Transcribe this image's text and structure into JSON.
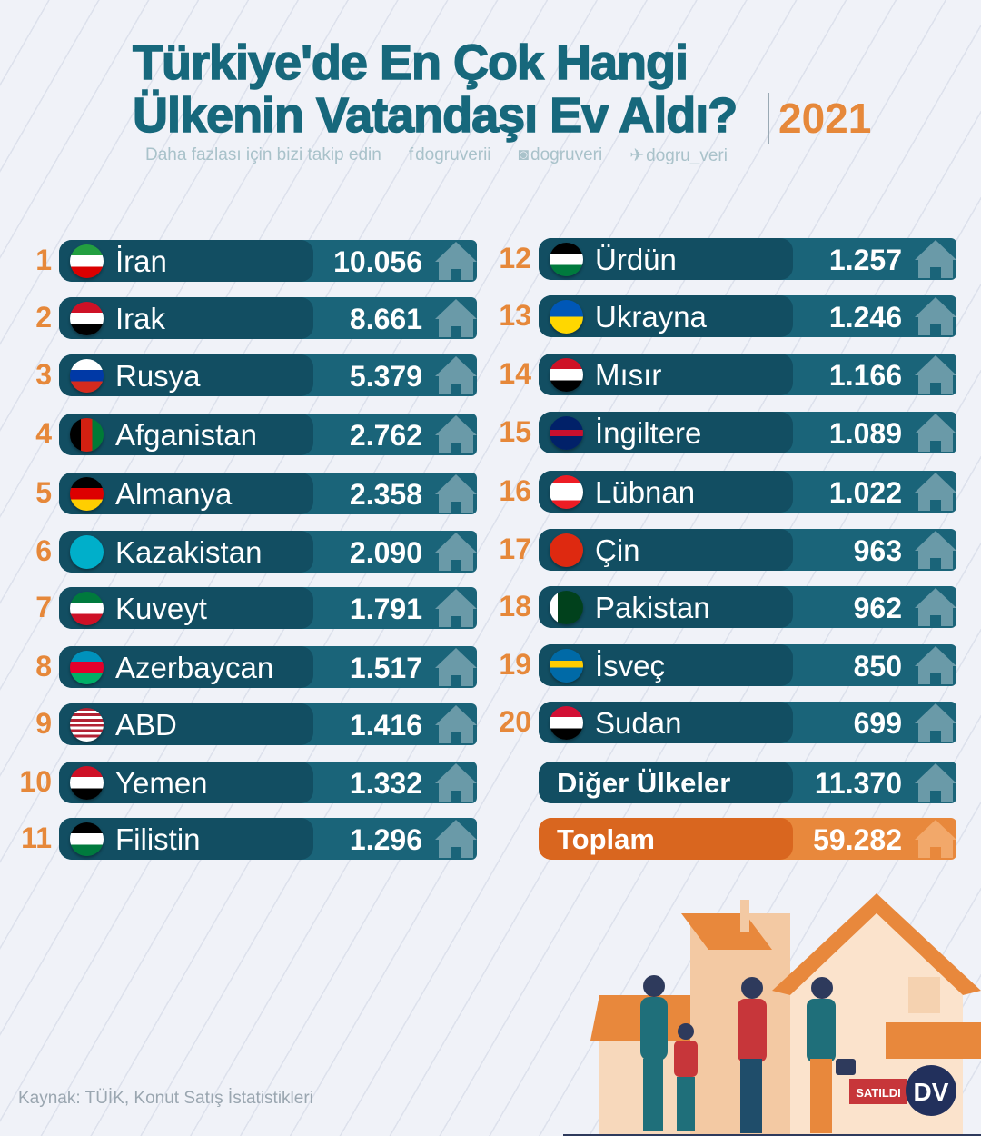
{
  "header": {
    "title_line1": "Türkiye'de En Çok Hangi",
    "title_line2": "Ülkenin Vatandaşı Ev Aldı?",
    "year": "2021",
    "follow": "Daha fazlası için bizi takip edin",
    "facebook": "dogruverii",
    "instagram": "dogruveri",
    "twitter": "dogru_veri"
  },
  "rows": [
    {
      "rank": "1",
      "name": "İran",
      "value": "10.056",
      "flag": [
        "#239f40 0 33%",
        "#fff 33% 66%",
        "#da0000 66%"
      ]
    },
    {
      "rank": "2",
      "name": "Irak",
      "value": "8.661",
      "flag": [
        "#ce1126 0 33%",
        "#fff 33% 66%",
        "#000 66%"
      ]
    },
    {
      "rank": "3",
      "name": "Rusya",
      "value": "5.379",
      "flag": [
        "#fff 0 33%",
        "#0039a6 33% 66%",
        "#d52b1e 66%"
      ]
    },
    {
      "rank": "4",
      "name": "Afganistan",
      "value": "2.762",
      "flag": [
        "#000 0 33%",
        "#d32011 33% 66%",
        "#007a36 66%"
      ],
      "vertical": true
    },
    {
      "rank": "5",
      "name": "Almanya",
      "value": "2.358",
      "flag": [
        "#000 0 33%",
        "#dd0000 33% 66%",
        "#ffce00 66%"
      ]
    },
    {
      "rank": "6",
      "name": "Kazakistan",
      "value": "2.090",
      "flag": [
        "#00afca 0 100%"
      ]
    },
    {
      "rank": "7",
      "name": "Kuveyt",
      "value": "1.791",
      "flag": [
        "#007a3d 0 33%",
        "#fff 33% 66%",
        "#ce1126 66%"
      ]
    },
    {
      "rank": "8",
      "name": "Azerbaycan",
      "value": "1.517",
      "flag": [
        "#0092bc 0 33%",
        "#e4002b 33% 66%",
        "#00af66 66%"
      ]
    },
    {
      "rank": "9",
      "name": "ABD",
      "value": "1.416",
      "flag": [
        "#b22234 0 8%",
        "#fff 8% 16%",
        "#b22234 16% 24%",
        "#fff 24% 32%",
        "#b22234 32% 40%",
        "#fff 40% 48%",
        "#b22234 48% 56%",
        "#fff 56% 64%",
        "#b22234 64% 72%",
        "#fff 72% 80%",
        "#b22234 80% 88%",
        "#fff 88%"
      ]
    },
    {
      "rank": "10",
      "name": "Yemen",
      "value": "1.332",
      "flag": [
        "#ce1126 0 33%",
        "#fff 33% 66%",
        "#000 66%"
      ]
    },
    {
      "rank": "11",
      "name": "Filistin",
      "value": "1.296",
      "flag": [
        "#000 0 33%",
        "#fff 33% 66%",
        "#007a3d 66%"
      ]
    },
    {
      "rank": "12",
      "name": "Ürdün",
      "value": "1.257",
      "flag": [
        "#000 0 33%",
        "#fff 33% 66%",
        "#007a3d 66%"
      ]
    },
    {
      "rank": "13",
      "name": "Ukrayna",
      "value": "1.246",
      "flag": [
        "#0057b7 0 50%",
        "#ffd700 50%"
      ]
    },
    {
      "rank": "14",
      "name": "Mısır",
      "value": "1.166",
      "flag": [
        "#ce1126 0 33%",
        "#fff 33% 66%",
        "#000 66%"
      ]
    },
    {
      "rank": "15",
      "name": "İngiltere",
      "value": "1.089",
      "flag": [
        "#012169 0 40%",
        "#c8102e 40% 60%",
        "#012169 60%"
      ]
    },
    {
      "rank": "16",
      "name": "Lübnan",
      "value": "1.022",
      "flag": [
        "#ed1c24 0 25%",
        "#fff 25% 75%",
        "#ed1c24 75%"
      ]
    },
    {
      "rank": "17",
      "name": "Çin",
      "value": "963",
      "flag": [
        "#de2910 0 100%"
      ]
    },
    {
      "rank": "18",
      "name": "Pakistan",
      "value": "962",
      "flag": [
        "#fff 0 25%",
        "#01411c 25%"
      ],
      "vertical": true
    },
    {
      "rank": "19",
      "name": "İsveç",
      "value": "850",
      "flag": [
        "#006aa7 0 35%",
        "#fecc00 35% 55%",
        "#006aa7 55%"
      ]
    },
    {
      "rank": "20",
      "name": "Sudan",
      "value": "699",
      "flag": [
        "#d21034 0 33%",
        "#fff 33% 66%",
        "#000 66%"
      ]
    }
  ],
  "other": {
    "name": "Diğer Ülkeler",
    "value": "11.370"
  },
  "total": {
    "name": "Toplam",
    "value": "59.282"
  },
  "illustration": {
    "sold_label": "SATILDI",
    "logo": "DV"
  },
  "source": "Kaynak: TÜİK, Konut Satış İstatistikleri",
  "colors": {
    "accent": "#e6883a",
    "bar_dark": "#124e62",
    "bar": "#1a6479",
    "house": "#6a9aa8"
  }
}
